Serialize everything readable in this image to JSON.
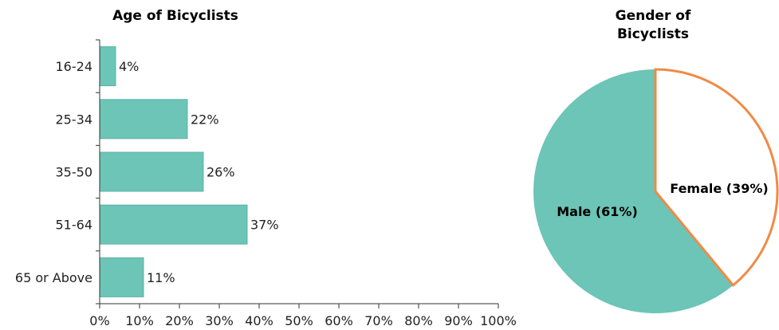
{
  "colors": {
    "bar": "#6cc5b6",
    "bar_border": "#5bb3a4",
    "pie_male": "#6cc5b6",
    "pie_female_fill": "#ffffff",
    "pie_female_border": "#f08a45",
    "axis": "#333333"
  },
  "chart_data": [
    {
      "type": "bar",
      "orientation": "horizontal",
      "title": "Age of Bicyclists",
      "categories": [
        "16-24",
        "25-34",
        "35-50",
        "51-64",
        "65 or Above"
      ],
      "values": [
        4,
        22,
        26,
        37,
        11
      ],
      "value_labels": [
        "4%",
        "22%",
        "26%",
        "37%",
        "11%"
      ],
      "xlim": [
        0,
        100
      ],
      "xticks": [
        "0%",
        "10%",
        "20%",
        "30%",
        "40%",
        "50%",
        "60%",
        "70%",
        "80%",
        "90%",
        "100%"
      ],
      "grid": false
    },
    {
      "type": "pie",
      "title_lines": [
        "Gender of",
        "Bicyclists"
      ],
      "slices": [
        {
          "label": "Male (61%)",
          "value": 61
        },
        {
          "label": "Female (39%)",
          "value": 39
        }
      ]
    }
  ]
}
